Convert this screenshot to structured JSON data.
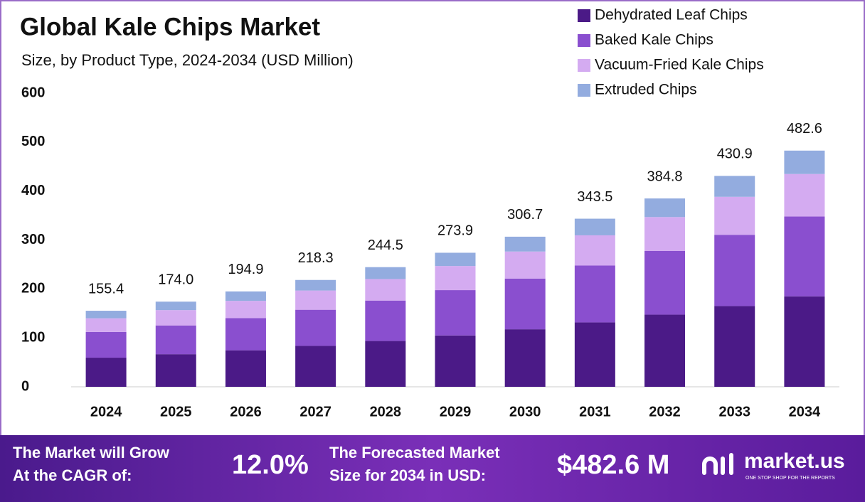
{
  "chart_data": {
    "type": "stacked_bar",
    "title": "Global Kale Chips Market",
    "subtitle": "Size, by Product Type, 2024-2034 (USD Million)",
    "categories": [
      "2024",
      "2025",
      "2026",
      "2027",
      "2028",
      "2029",
      "2030",
      "2031",
      "2032",
      "2033",
      "2034"
    ],
    "series": [
      {
        "name": "Dehydrated Leaf Chips",
        "color": "#4b1a87",
        "values": [
          59.5,
          66.6,
          74.6,
          83.6,
          93.6,
          104.9,
          117.5,
          131.6,
          147.4,
          165.0,
          184.8
        ]
      },
      {
        "name": "Baked Kale Chips",
        "color": "#8a4fcf",
        "values": [
          52.5,
          58.8,
          65.9,
          73.8,
          82.6,
          92.6,
          103.7,
          116.1,
          130.1,
          145.6,
          163.1
        ]
      },
      {
        "name": "Vacuum-Fried Kale Chips",
        "color": "#d4abf1",
        "values": [
          28.0,
          31.3,
          35.1,
          39.3,
          44.0,
          49.3,
          55.2,
          61.8,
          69.3,
          77.6,
          86.9
        ]
      },
      {
        "name": "Extruded Chips",
        "color": "#93acdf",
        "values": [
          15.4,
          17.3,
          19.3,
          21.6,
          24.3,
          27.1,
          30.3,
          34.0,
          38.0,
          42.7,
          47.8
        ]
      }
    ],
    "totals": {
      "values": [
        155.4,
        174.0,
        194.9,
        218.3,
        244.5,
        273.9,
        306.7,
        343.5,
        384.8,
        430.9,
        482.6
      ],
      "value_labels": [
        "155.4",
        "174.0",
        "194.9",
        "218.3",
        "244.5",
        "273.9",
        "306.7",
        "343.5",
        "384.8",
        "430.9",
        "482.6"
      ]
    },
    "ylim": [
      0,
      600
    ],
    "yticks": [
      0,
      100,
      200,
      300,
      400,
      500,
      600
    ],
    "grid": false,
    "legend": "top-right"
  },
  "footer": {
    "cagr_label": [
      "The Market will Grow",
      "At the CAGR of:"
    ],
    "cagr": "12.0%",
    "forecast_label": [
      "The Forecasted Market",
      "Size for 2034 in USD:"
    ],
    "forecast": "$482.6 M",
    "brand": "market.us",
    "tagline": "ONE STOP SHOP FOR THE REPORTS"
  }
}
